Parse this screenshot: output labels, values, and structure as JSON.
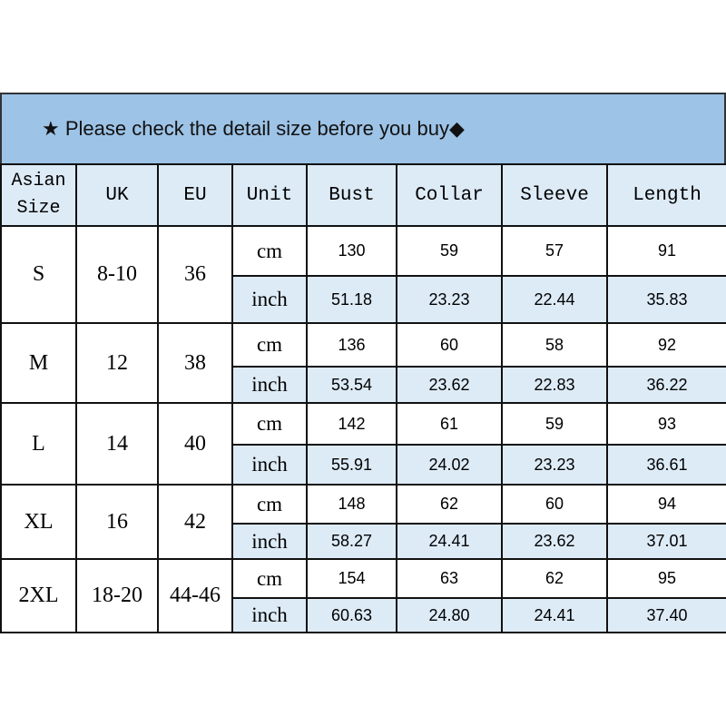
{
  "banner": {
    "text": "Please check the detail size before you buy",
    "lead_icon": "star-icon",
    "lead_glyph": "★",
    "trail_icon": "diamond-icon",
    "trail_glyph": "◆"
  },
  "colors": {
    "banner": "#9dc3e6",
    "header_row": "#ddebf7",
    "inch_row": "#ddebf7"
  },
  "headers": [
    "Asian Size",
    "UK",
    "EU",
    "Unit",
    "Bust",
    "Collar",
    "Sleeve",
    "Length"
  ],
  "headers_asian": [
    "Asian",
    "Size"
  ],
  "sizes": [
    {
      "asian": "S",
      "uk": "8-10",
      "eu": "36",
      "cm": {
        "unit": "cm",
        "values": [
          "130",
          "59",
          "57",
          "91"
        ]
      },
      "inch": {
        "unit": "inch",
        "values": [
          "51.18",
          "23.23",
          "22.44",
          "35.83"
        ]
      }
    },
    {
      "asian": "M",
      "uk": "12",
      "eu": "38",
      "cm": {
        "unit": "cm",
        "values": [
          "136",
          "60",
          "58",
          "92"
        ]
      },
      "inch": {
        "unit": "inch",
        "values": [
          "53.54",
          "23.62",
          "22.83",
          "36.22"
        ]
      }
    },
    {
      "asian": "L",
      "uk": "14",
      "eu": "40",
      "cm": {
        "unit": "cm",
        "values": [
          "142",
          "61",
          "59",
          "93"
        ]
      },
      "inch": {
        "unit": "inch",
        "values": [
          "55.91",
          "24.02",
          "23.23",
          "36.61"
        ]
      }
    },
    {
      "asian": "XL",
      "uk": "16",
      "eu": "42",
      "cm": {
        "unit": "cm",
        "values": [
          "148",
          "62",
          "60",
          "94"
        ]
      },
      "inch": {
        "unit": "inch",
        "values": [
          "58.27",
          "24.41",
          "23.62",
          "37.01"
        ]
      }
    },
    {
      "asian": "2XL",
      "uk": "18-20",
      "eu": "44-46",
      "cm": {
        "unit": "cm",
        "values": [
          "154",
          "63",
          "62",
          "95"
        ]
      },
      "inch": {
        "unit": "inch",
        "values": [
          "60.63",
          "24.80",
          "24.41",
          "37.40"
        ]
      }
    }
  ]
}
